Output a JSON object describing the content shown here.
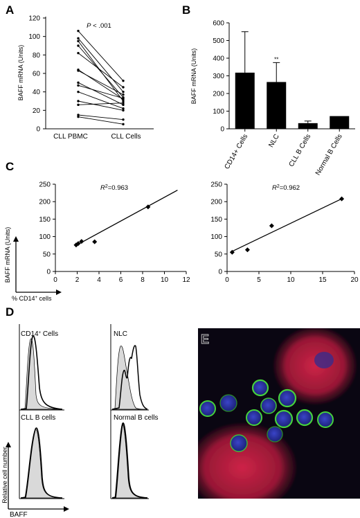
{
  "panel_labels": {
    "a": "A",
    "b": "B",
    "c": "C",
    "d": "D",
    "e": "E"
  },
  "colors": {
    "ink": "#000000",
    "gray_fill": "#d9d9d9",
    "micro_bg": "#0a0612",
    "micro_red": "#c81e3c",
    "micro_green": "#46d23c",
    "micro_blue": "#2830a0"
  },
  "chart_data": [
    {
      "panel": "A",
      "type": "line",
      "ylabel": "BAFF mRNA (Units)",
      "ylim": [
        0,
        120
      ],
      "yticks": [
        0,
        20,
        40,
        60,
        80,
        100,
        120
      ],
      "categories": [
        "CLL PBMC",
        "CLL Cells"
      ],
      "annotation": {
        "prefix": "P",
        "text": " < .001"
      },
      "pairs": [
        [
          106,
          52
        ],
        [
          98,
          40
        ],
        [
          95,
          30
        ],
        [
          90,
          34
        ],
        [
          82,
          45
        ],
        [
          64,
          32
        ],
        [
          63,
          37
        ],
        [
          50,
          26
        ],
        [
          47,
          33
        ],
        [
          40,
          22
        ],
        [
          30,
          20
        ],
        [
          26,
          28
        ],
        [
          15,
          10
        ],
        [
          13,
          5
        ]
      ]
    },
    {
      "panel": "B",
      "type": "bar",
      "ylabel": "BAFF mRNA (Units)",
      "ylim": [
        0,
        600
      ],
      "yticks": [
        0,
        100,
        200,
        300,
        400,
        500,
        600
      ],
      "categories": [
        "CD14+ Cells",
        "NLC",
        "CLL B Cells",
        "Normal B Cells"
      ],
      "values": [
        318,
        265,
        32,
        72
      ],
      "errors": [
        232,
        110,
        12,
        0
      ],
      "marks": [
        "",
        "**",
        "",
        ""
      ]
    },
    {
      "panel": "C-left",
      "type": "scatter",
      "ylabel": "BAFF mRNA (Units)",
      "xlabel": "% CD14",
      "xlabel_sup": "+",
      "xlabel_suffix": " cells",
      "xlim": [
        0,
        12
      ],
      "ylim": [
        0,
        250
      ],
      "xticks": [
        0,
        2,
        4,
        6,
        8,
        10,
        12
      ],
      "yticks": [
        0,
        50,
        100,
        150,
        200,
        250
      ],
      "r2_label": "R",
      "r2_value": "=0.963",
      "points": [
        [
          1.9,
          76
        ],
        [
          2.1,
          80
        ],
        [
          2.4,
          86
        ],
        [
          3.6,
          85
        ],
        [
          8.5,
          185
        ]
      ],
      "fit": [
        [
          1.8,
          73
        ],
        [
          11.2,
          233
        ]
      ]
    },
    {
      "panel": "C-right",
      "type": "scatter",
      "xlim": [
        0,
        20
      ],
      "ylim": [
        0,
        250
      ],
      "xticks": [
        0,
        5,
        10,
        15,
        20
      ],
      "yticks": [
        0,
        50,
        100,
        150,
        200,
        250
      ],
      "r2_label": "R",
      "r2_value": "=0.962",
      "points": [
        [
          0.8,
          55
        ],
        [
          3.2,
          62
        ],
        [
          7.0,
          131
        ],
        [
          18.0,
          208
        ]
      ],
      "fit": [
        [
          0.5,
          55
        ],
        [
          18.2,
          210
        ]
      ]
    }
  ],
  "histograms": {
    "y_label": "Relative cell number",
    "x_label": "BAFF",
    "titles": [
      "CD14",
      "NLC",
      "CLL B cells",
      "Normal B cells"
    ],
    "title_sup": "+",
    "title_suffix": " Cells"
  }
}
